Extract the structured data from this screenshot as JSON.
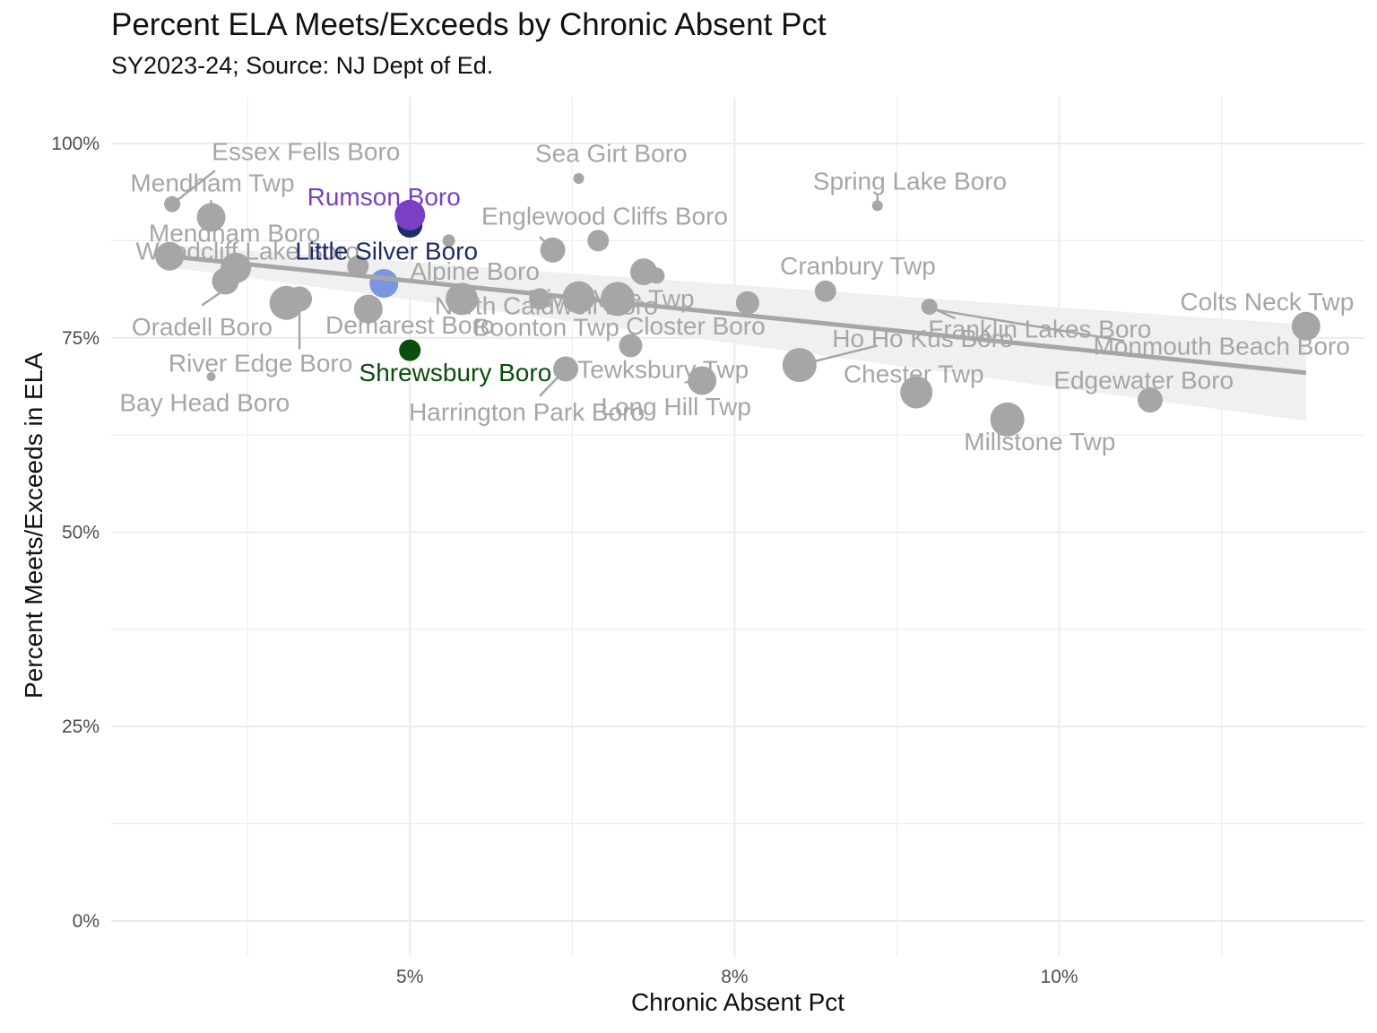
{
  "chart_data": {
    "type": "scatter",
    "title": "Percent ELA Meets/Exceeds by Chronic Absent Pct",
    "subtitle": "SY2023-24; Source: NJ Dept of Ed.",
    "xlabel": "Chronic Absent Pct",
    "ylabel": "Percent Meets/Exceeds in ELA",
    "x_ticks": [
      {
        "value": 5.0,
        "label": "5%"
      },
      {
        "value": 7.5,
        "label": "8%"
      },
      {
        "value": 10.0,
        "label": "10%"
      }
    ],
    "y_ticks": [
      {
        "value": 0,
        "label": "0%"
      },
      {
        "value": 25,
        "label": "25%"
      },
      {
        "value": 50,
        "label": "50%"
      },
      {
        "value": 75,
        "label": "75%"
      },
      {
        "value": 100,
        "label": "100%"
      }
    ],
    "xlim": [
      2.7,
      12.35
    ],
    "ylim": [
      -4.5,
      106
    ],
    "grid": true,
    "trend_line": {
      "x": [
        3.15,
        11.9
      ],
      "y": [
        85.5,
        70.5
      ],
      "band_halfwidth_start": 1.4,
      "band_halfwidth_end": 6.2,
      "color": "#a6a6a6"
    },
    "colors": {
      "default": "#a6a6a6",
      "rumson": "#7b3fc4",
      "little_silver": "#1f2a6b",
      "highlight_light": "#7b96e0",
      "shrewsbury": "#0b4d0b",
      "grid": "#ebebeb"
    },
    "points": [
      {
        "x": 3.15,
        "y": 85.5,
        "size": 16,
        "color": "default"
      },
      {
        "x": 3.17,
        "y": 92.2,
        "size": 9,
        "color": "default"
      },
      {
        "x": 3.47,
        "y": 90.5,
        "size": 16,
        "color": "default"
      },
      {
        "x": 3.47,
        "y": 70.0,
        "size": 5,
        "color": "default"
      },
      {
        "x": 3.58,
        "y": 82.3,
        "size": 15,
        "color": "default"
      },
      {
        "x": 3.66,
        "y": 84.0,
        "size": 17,
        "color": "default"
      },
      {
        "x": 4.05,
        "y": 79.5,
        "size": 19,
        "color": "default"
      },
      {
        "x": 4.15,
        "y": 80.0,
        "size": 14,
        "color": "default"
      },
      {
        "x": 4.6,
        "y": 84.2,
        "size": 12,
        "color": "default"
      },
      {
        "x": 4.68,
        "y": 78.7,
        "size": 16,
        "color": "default"
      },
      {
        "x": 5.3,
        "y": 87.5,
        "size": 7,
        "color": "default"
      },
      {
        "x": 5.4,
        "y": 80.0,
        "size": 18,
        "color": "default"
      },
      {
        "x": 6.0,
        "y": 80.0,
        "size": 12,
        "color": "default"
      },
      {
        "x": 6.1,
        "y": 86.3,
        "size": 14,
        "color": "default"
      },
      {
        "x": 6.3,
        "y": 80.2,
        "size": 18,
        "color": "default"
      },
      {
        "x": 6.3,
        "y": 95.5,
        "size": 6,
        "color": "default"
      },
      {
        "x": 6.2,
        "y": 71.0,
        "size": 14,
        "color": "default"
      },
      {
        "x": 6.45,
        "y": 87.5,
        "size": 12,
        "color": "default"
      },
      {
        "x": 6.6,
        "y": 80.0,
        "size": 19,
        "color": "default"
      },
      {
        "x": 6.7,
        "y": 74.0,
        "size": 13,
        "color": "default"
      },
      {
        "x": 6.8,
        "y": 83.5,
        "size": 15,
        "color": "default"
      },
      {
        "x": 6.9,
        "y": 83.0,
        "size": 9,
        "color": "default"
      },
      {
        "x": 7.25,
        "y": 69.5,
        "size": 16,
        "color": "default"
      },
      {
        "x": 7.6,
        "y": 79.5,
        "size": 13,
        "color": "default"
      },
      {
        "x": 8.0,
        "y": 71.5,
        "size": 19,
        "color": "default"
      },
      {
        "x": 8.2,
        "y": 81.0,
        "size": 12,
        "color": "default"
      },
      {
        "x": 8.6,
        "y": 92.0,
        "size": 6,
        "color": "default"
      },
      {
        "x": 8.9,
        "y": 68.0,
        "size": 18,
        "color": "default"
      },
      {
        "x": 9.0,
        "y": 79.0,
        "size": 9,
        "color": "default"
      },
      {
        "x": 9.6,
        "y": 64.5,
        "size": 19,
        "color": "default"
      },
      {
        "x": 10.7,
        "y": 67.0,
        "size": 14,
        "color": "default"
      },
      {
        "x": 11.9,
        "y": 76.5,
        "size": 16,
        "color": "default"
      },
      {
        "x": 5.0,
        "y": 89.5,
        "size": 14,
        "color": "little_silver"
      },
      {
        "x": 5.0,
        "y": 90.8,
        "size": 17,
        "color": "rumson"
      },
      {
        "x": 4.8,
        "y": 82.0,
        "size": 16,
        "color": "highlight_light"
      },
      {
        "x": 5.0,
        "y": 73.4,
        "size": 12,
        "color": "shrewsbury"
      }
    ],
    "labels": [
      {
        "text": "Essex Fells Boro",
        "x": 4.2,
        "y": 99.0,
        "color": "default",
        "leader": [
          3.17,
          92.2,
          3.5,
          96.5
        ]
      },
      {
        "text": "Mendham Twp",
        "x": 3.48,
        "y": 95.0,
        "color": "default",
        "leader": [
          3.47,
          90.5,
          3.47,
          92.7
        ]
      },
      {
        "text": "Sea Girt Boro",
        "x": 6.55,
        "y": 98.8,
        "color": "default"
      },
      {
        "text": "Spring Lake Boro",
        "x": 8.85,
        "y": 95.2,
        "color": "default",
        "leader": [
          8.6,
          92.0,
          8.6,
          93.4
        ]
      },
      {
        "text": "Englewood Cliffs Boro",
        "x": 6.5,
        "y": 90.7,
        "color": "default",
        "leader": [
          6.1,
          86.3,
          6.0,
          88.0
        ]
      },
      {
        "text": "Mendham Boro",
        "x": 3.65,
        "y": 88.5,
        "color": "default"
      },
      {
        "text": "Woodcliff Lake Boro",
        "x": 3.75,
        "y": 86.2,
        "color": "default"
      },
      {
        "text": "Alpine Boro",
        "x": 5.5,
        "y": 83.6,
        "color": "default"
      },
      {
        "text": "River Vale Twp",
        "x": 6.55,
        "y": 80.1,
        "color": "default"
      },
      {
        "text": "North Caldwell Boro",
        "x": 6.05,
        "y": 79.2,
        "color": "default"
      },
      {
        "text": "Cranbury Twp",
        "x": 8.45,
        "y": 84.3,
        "color": "default"
      },
      {
        "text": "Colts Neck Twp",
        "x": 11.6,
        "y": 79.7,
        "color": "default"
      },
      {
        "text": "Oradell Boro",
        "x": 3.4,
        "y": 76.5,
        "color": "default",
        "leader": [
          3.6,
          81.5,
          3.4,
          79.2
        ]
      },
      {
        "text": "Demarest Boro",
        "x": 5.0,
        "y": 76.7,
        "color": "default"
      },
      {
        "text": "Boonton Twp",
        "x": 6.05,
        "y": 76.4,
        "color": "default"
      },
      {
        "text": "Closter Boro",
        "x": 7.2,
        "y": 76.6,
        "color": "default"
      },
      {
        "text": "Franklin Lakes Boro",
        "x": 9.85,
        "y": 76.2,
        "color": "default",
        "leader": [
          9.0,
          79.0,
          9.2,
          77.5
        ]
      },
      {
        "text": "Ho Ho Kus Boro",
        "x": 8.95,
        "y": 75.0,
        "color": "default",
        "leader": [
          8.0,
          71.5,
          8.6,
          74.0
        ]
      },
      {
        "text": "Monmouth Beach Boro",
        "x": 11.25,
        "y": 74.0,
        "color": "default",
        "leader": [
          9.05,
          78.6,
          10.5,
          74.6
        ]
      },
      {
        "text": "River Edge Boro",
        "x": 3.85,
        "y": 71.8,
        "color": "default",
        "leader": [
          4.15,
          80.0,
          4.15,
          73.5
        ]
      },
      {
        "text": "Shrewsbury Boro",
        "x": 5.35,
        "y": 70.6,
        "color": "shrewsbury"
      },
      {
        "text": "Tewksbury Twp",
        "x": 6.95,
        "y": 71.0,
        "color": "default"
      },
      {
        "text": "Chester Twp",
        "x": 8.88,
        "y": 70.4,
        "color": "default"
      },
      {
        "text": "Edgewater Boro",
        "x": 10.65,
        "y": 69.6,
        "color": "default"
      },
      {
        "text": "Bay Head Boro",
        "x": 3.42,
        "y": 66.7,
        "color": "default"
      },
      {
        "text": "Harrington Park Boro",
        "x": 5.9,
        "y": 65.5,
        "color": "default",
        "leader": [
          6.2,
          71.0,
          6.0,
          67.5
        ]
      },
      {
        "text": "Long Hill Twp",
        "x": 7.05,
        "y": 66.2,
        "color": "default"
      },
      {
        "text": "Millstone Twp",
        "x": 9.85,
        "y": 61.7,
        "color": "default"
      },
      {
        "text": "Rumson Boro",
        "x": 4.8,
        "y": 93.2,
        "color": "rumson"
      },
      {
        "text": "Little Silver Boro",
        "x": 4.82,
        "y": 86.2,
        "color": "little_silver"
      }
    ]
  }
}
